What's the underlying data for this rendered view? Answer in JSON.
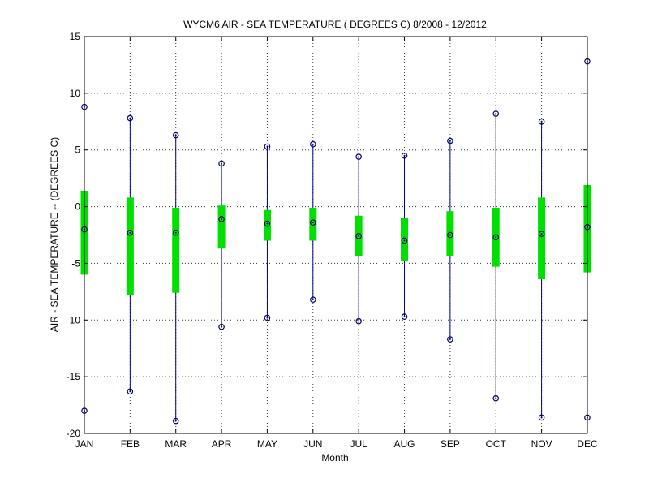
{
  "chart_data": {
    "type": "box",
    "title": "WYCM6  AIR - SEA TEMPERATURE ( DEGREES C) 8/2008 - 12/2012",
    "xlabel": "Month",
    "ylabel": "AIR - SEA TEMPERATURE -- (DEGREES C)",
    "ylim": [
      -20,
      15
    ],
    "yticks": [
      -20,
      -15,
      -10,
      -5,
      0,
      5,
      10,
      15
    ],
    "grid": true,
    "categories": [
      "JAN",
      "FEB",
      "MAR",
      "APR",
      "MAY",
      "JUN",
      "JUL",
      "AUG",
      "SEP",
      "OCT",
      "NOV",
      "DEC"
    ],
    "series": [
      {
        "min": [
          -18.0,
          -16.3,
          -18.9,
          -10.6,
          -9.8,
          -8.2,
          -10.1,
          -9.7,
          -11.7,
          -16.9,
          -18.6,
          -18.6
        ],
        "q1": [
          -6.0,
          -7.8,
          -7.6,
          -3.7,
          -3.0,
          -3.0,
          -4.4,
          -4.8,
          -4.4,
          -5.3,
          -6.4,
          -5.8
        ],
        "median": [
          -2.0,
          -2.3,
          -2.3,
          -1.1,
          -1.5,
          -1.4,
          -2.6,
          -3.0,
          -2.5,
          -2.7,
          -2.4,
          -1.8
        ],
        "q3": [
          1.4,
          0.8,
          -0.1,
          0.1,
          -0.3,
          -0.1,
          -0.8,
          -1.0,
          -0.4,
          -0.1,
          0.8,
          1.9
        ],
        "max": [
          8.8,
          7.8,
          6.3,
          3.8,
          5.3,
          5.5,
          4.4,
          4.5,
          5.8,
          8.2,
          7.5,
          12.8
        ]
      }
    ],
    "colors": {
      "whisker": "#00008b",
      "box": "#00e000",
      "marker": "#000066",
      "grid": "#000000",
      "axis": "#000000"
    }
  }
}
